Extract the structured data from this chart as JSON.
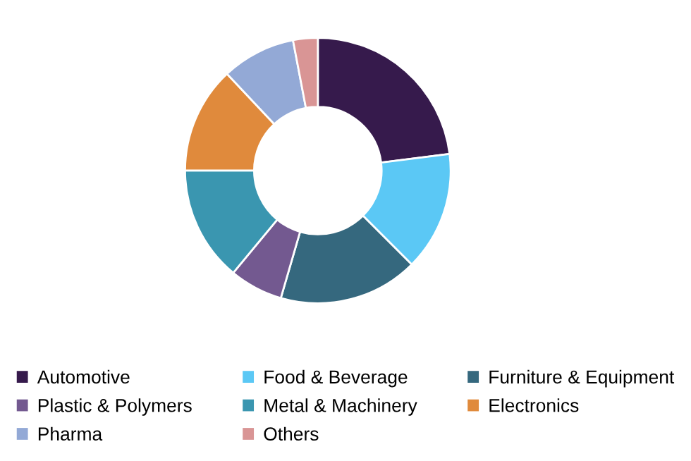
{
  "chart_data": {
    "type": "donut",
    "categories": [
      "Automotive",
      "Food & Beverage",
      "Furniture & Equipment",
      "Plastic & Polymers",
      "Metal & Machinery",
      "Electronics",
      "Pharma",
      "Others"
    ],
    "values": [
      23,
      14.5,
      17,
      6.5,
      14,
      13,
      9,
      3
    ],
    "colors": [
      "#361a4c",
      "#5bc8f5",
      "#35687e",
      "#735990",
      "#3a96b0",
      "#e08a3c",
      "#93a9d6",
      "#d99595"
    ],
    "legend": "bottom"
  }
}
